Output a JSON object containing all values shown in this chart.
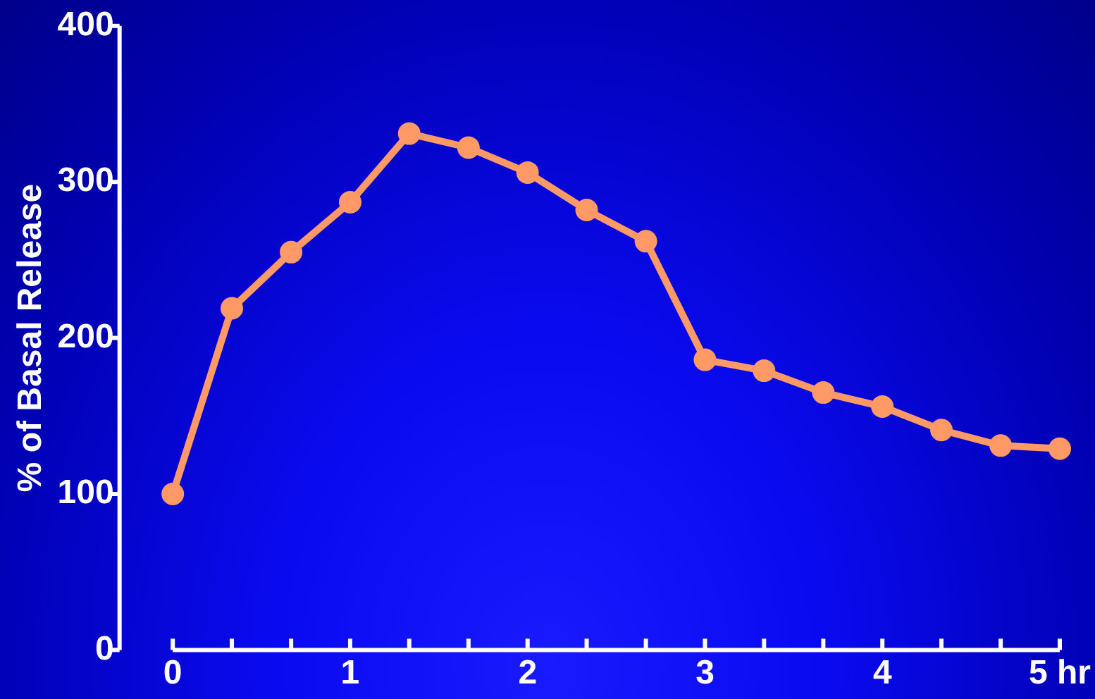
{
  "chart_data": {
    "type": "line",
    "ylabel": "% of Basal Release",
    "x": [
      0,
      0.333,
      0.667,
      1,
      1.333,
      1.667,
      2,
      2.333,
      2.667,
      3,
      3.333,
      3.667,
      4,
      4.333,
      4.667,
      5
    ],
    "series": [
      {
        "color": "#ff9966",
        "values": [
          100,
          219,
          255,
          287,
          331,
          322,
          306,
          282,
          262,
          186,
          179,
          165,
          156,
          141,
          131,
          129
        ]
      }
    ],
    "xlim": [
      -0.3,
      5
    ],
    "ylim": [
      0,
      400
    ],
    "xticks": [
      0,
      {
        "value": 0.333,
        "label": null
      },
      {
        "value": 0.667,
        "label": null
      },
      1,
      {
        "value": 1.333,
        "label": null
      },
      {
        "value": 1.667,
        "label": null
      },
      2,
      {
        "value": 2.333,
        "label": null
      },
      {
        "value": 2.667,
        "label": null
      },
      3,
      {
        "value": 3.333,
        "label": null
      },
      {
        "value": 3.667,
        "label": null
      },
      4,
      {
        "value": 4.333,
        "label": null
      },
      {
        "value": 4.667,
        "label": null
      },
      {
        "value": 5,
        "label": "5 hr"
      }
    ],
    "yticks": [
      0,
      100,
      200,
      300,
      400
    ],
    "grid": false,
    "legend": false,
    "marker": "circle",
    "line_style": "solid"
  }
}
